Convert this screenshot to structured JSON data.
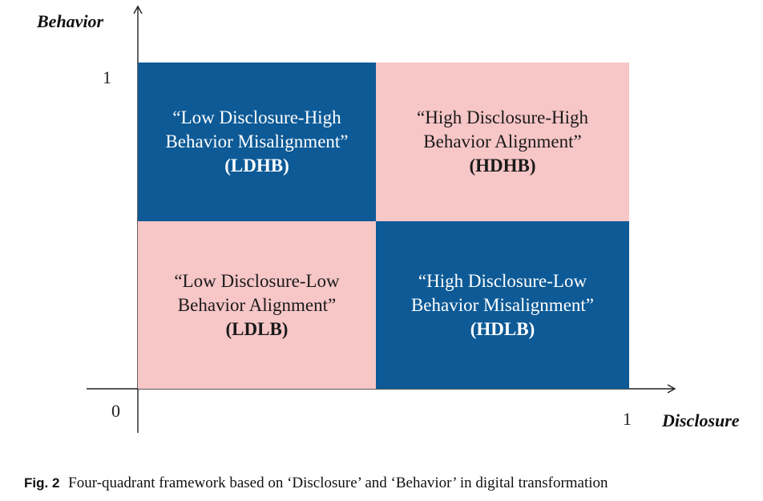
{
  "axes": {
    "y_title": "Behavior",
    "x_title": "Disclosure",
    "origin_label": "0",
    "y_max_label": "1",
    "x_max_label": "1"
  },
  "colors": {
    "dark_blue": "#0d5a96",
    "pink": "#f7c6c7",
    "text_on_dark": "#ffffff",
    "text_on_light": "#1a1a1a"
  },
  "quadrants": [
    {
      "id": "top-left",
      "lines": [
        "“Low Disclosure-High",
        "Behavior Misalignment”"
      ],
      "abbr": "(LDHB)",
      "fill": "dark_blue"
    },
    {
      "id": "top-right",
      "lines": [
        "“High Disclosure-High",
        "Behavior Alignment”"
      ],
      "abbr": "(HDHB)",
      "fill": "pink"
    },
    {
      "id": "bottom-left",
      "lines": [
        "“Low Disclosure-Low",
        "Behavior Alignment”"
      ],
      "abbr": "(LDLB)",
      "fill": "pink"
    },
    {
      "id": "bottom-right",
      "lines": [
        "“High Disclosure-Low",
        "Behavior Misalignment”"
      ],
      "abbr": "(HDLB)",
      "fill": "dark_blue"
    }
  ],
  "caption": {
    "label": "Fig. 2",
    "text": "Four-quadrant framework based on ‘Disclosure’ and ‘Behavior’ in digital transformation"
  }
}
